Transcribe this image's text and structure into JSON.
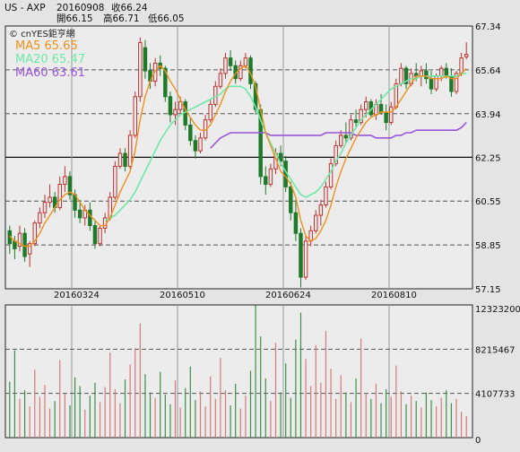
{
  "header": {
    "symbol": "US - AXP",
    "date": "20160908",
    "close_label": "收66.24",
    "open_label": "開66.15",
    "high_label": "高66.71",
    "low_label": "低66.05"
  },
  "watermark": "© cnYES鉅亨網",
  "legend": [
    {
      "label": "MA5 65.65",
      "color": "#f0901a"
    },
    {
      "label": "MA20 65.47",
      "color": "#6ee8a8"
    },
    {
      "label": "MA60 63.61",
      "color": "#9a55d8"
    }
  ],
  "colors": {
    "up": "#c0312e",
    "down": "#1f7a2a",
    "grid": "#444444",
    "panel_bg": "#ececec"
  },
  "chart_data": [
    {
      "type": "candlestick",
      "x_tick_labels": [
        "20160324",
        "20160510",
        "20160624",
        "20160810"
      ],
      "y_tick_labels": [
        "67.34",
        "65.64",
        "63.94",
        "62.25",
        "60.55",
        "58.85",
        "57.15"
      ],
      "ylim": [
        57.15,
        67.34
      ],
      "y_ticks": [
        67.34,
        65.64,
        63.94,
        62.25,
        60.55,
        58.85,
        57.15
      ],
      "last": {
        "date": "20160908",
        "open": 66.15,
        "high": 66.71,
        "low": 66.05,
        "close": 66.24
      },
      "ohlc": [
        [
          59.4,
          59.6,
          58.5,
          58.9
        ],
        [
          59.0,
          59.2,
          58.3,
          58.7
        ],
        [
          58.8,
          59.6,
          58.6,
          59.3
        ],
        [
          59.3,
          59.5,
          58.2,
          58.4
        ],
        [
          58.5,
          59.0,
          58.0,
          58.9
        ],
        [
          58.9,
          59.8,
          58.8,
          59.7
        ],
        [
          59.7,
          60.3,
          59.5,
          60.1
        ],
        [
          60.1,
          60.8,
          59.9,
          60.5
        ],
        [
          60.5,
          61.2,
          60.3,
          60.7
        ],
        [
          60.7,
          60.9,
          60.1,
          60.3
        ],
        [
          60.3,
          61.5,
          60.2,
          61.2
        ],
        [
          61.2,
          61.9,
          60.9,
          61.5
        ],
        [
          61.5,
          61.7,
          60.6,
          60.8
        ],
        [
          60.8,
          61.0,
          59.9,
          60.2
        ],
        [
          60.2,
          60.6,
          59.7,
          59.9
        ],
        [
          59.9,
          60.4,
          59.6,
          60.2
        ],
        [
          60.2,
          60.5,
          59.4,
          59.6
        ],
        [
          59.6,
          59.8,
          58.7,
          58.9
        ],
        [
          58.9,
          59.6,
          58.8,
          59.5
        ],
        [
          59.5,
          60.1,
          59.3,
          59.9
        ],
        [
          59.9,
          60.9,
          59.8,
          60.7
        ],
        [
          60.7,
          62.1,
          60.6,
          61.9
        ],
        [
          61.9,
          62.6,
          61.8,
          62.4
        ],
        [
          62.4,
          62.6,
          61.7,
          61.9
        ],
        [
          61.9,
          63.3,
          61.8,
          63.1
        ],
        [
          63.1,
          64.8,
          63.0,
          64.6
        ],
        [
          64.6,
          66.9,
          64.4,
          66.7
        ],
        [
          66.5,
          66.8,
          65.3,
          65.6
        ],
        [
          65.6,
          65.9,
          64.9,
          65.2
        ],
        [
          65.2,
          66.1,
          65.0,
          65.9
        ],
        [
          65.9,
          66.2,
          65.4,
          65.7
        ],
        [
          65.7,
          65.8,
          64.4,
          64.6
        ],
        [
          64.6,
          64.8,
          63.6,
          63.9
        ],
        [
          63.9,
          64.4,
          63.5,
          64.1
        ],
        [
          64.1,
          64.6,
          63.9,
          64.4
        ],
        [
          64.4,
          64.5,
          63.3,
          63.5
        ],
        [
          63.5,
          63.8,
          62.7,
          62.9
        ],
        [
          62.9,
          63.1,
          62.2,
          62.5
        ],
        [
          62.5,
          63.2,
          62.4,
          63.0
        ],
        [
          63.0,
          63.9,
          62.9,
          63.7
        ],
        [
          63.7,
          64.5,
          63.6,
          64.3
        ],
        [
          64.3,
          65.2,
          64.2,
          65.0
        ],
        [
          65.0,
          65.7,
          64.9,
          65.5
        ],
        [
          65.5,
          66.3,
          65.3,
          66.1
        ],
        [
          66.1,
          66.4,
          65.6,
          65.8
        ],
        [
          65.8,
          66.0,
          65.1,
          65.3
        ],
        [
          65.3,
          66.0,
          65.2,
          65.8
        ],
        [
          65.8,
          66.3,
          65.7,
          66.1
        ],
        [
          66.1,
          66.2,
          64.9,
          65.1
        ],
        [
          65.1,
          65.2,
          63.9,
          64.1
        ],
        [
          64.1,
          64.3,
          61.2,
          61.5
        ],
        [
          61.5,
          61.9,
          60.8,
          61.2
        ],
        [
          61.2,
          62.0,
          61.1,
          61.8
        ],
        [
          61.8,
          62.6,
          61.6,
          62.4
        ],
        [
          62.4,
          62.7,
          61.9,
          62.1
        ],
        [
          62.1,
          62.3,
          60.9,
          61.1
        ],
        [
          61.1,
          61.3,
          59.8,
          60.1
        ],
        [
          60.1,
          60.6,
          59.0,
          59.3
        ],
        [
          59.3,
          59.5,
          57.2,
          57.6
        ],
        [
          57.6,
          59.2,
          57.5,
          59.0
        ],
        [
          59.0,
          59.6,
          58.8,
          59.4
        ],
        [
          59.4,
          60.2,
          59.3,
          60.0
        ],
        [
          60.0,
          60.6,
          59.6,
          60.4
        ],
        [
          60.4,
          61.3,
          60.3,
          61.1
        ],
        [
          61.1,
          62.2,
          61.0,
          62.0
        ],
        [
          62.0,
          62.9,
          61.9,
          62.7
        ],
        [
          62.7,
          63.3,
          62.6,
          63.1
        ],
        [
          63.1,
          63.6,
          62.8,
          63.0
        ],
        [
          63.0,
          63.9,
          62.9,
          63.7
        ],
        [
          63.7,
          64.1,
          63.4,
          63.6
        ],
        [
          63.6,
          64.3,
          63.5,
          64.1
        ],
        [
          64.1,
          64.6,
          63.8,
          64.4
        ],
        [
          64.4,
          64.5,
          63.8,
          63.9
        ],
        [
          63.9,
          64.5,
          63.7,
          64.3
        ],
        [
          64.3,
          64.7,
          63.9,
          64.0
        ],
        [
          64.0,
          64.3,
          63.3,
          63.6
        ],
        [
          63.6,
          64.4,
          63.5,
          64.2
        ],
        [
          64.2,
          65.3,
          64.1,
          65.1
        ],
        [
          65.1,
          65.9,
          65.0,
          65.7
        ],
        [
          65.7,
          65.8,
          64.9,
          65.1
        ],
        [
          65.1,
          65.7,
          65.0,
          65.5
        ],
        [
          65.5,
          65.9,
          65.2,
          65.4
        ],
        [
          65.4,
          65.8,
          65.0,
          65.6
        ],
        [
          65.6,
          65.9,
          65.1,
          65.3
        ],
        [
          65.3,
          65.6,
          64.7,
          64.9
        ],
        [
          64.9,
          65.5,
          64.8,
          65.4
        ],
        [
          65.4,
          65.8,
          65.2,
          65.7
        ],
        [
          65.7,
          65.9,
          65.3,
          65.4
        ],
        [
          65.4,
          65.7,
          64.6,
          64.8
        ],
        [
          64.8,
          65.6,
          64.7,
          65.5
        ],
        [
          65.5,
          66.3,
          65.4,
          66.1
        ],
        [
          66.15,
          66.71,
          66.05,
          66.24
        ]
      ],
      "ma5": [
        59.2,
        59.0,
        58.9,
        58.8,
        58.8,
        59.0,
        59.3,
        59.7,
        60.0,
        60.3,
        60.6,
        60.8,
        60.9,
        60.8,
        60.5,
        60.2,
        60.0,
        59.8,
        59.6,
        59.6,
        59.9,
        60.4,
        60.9,
        61.3,
        61.7,
        62.5,
        63.7,
        64.6,
        65.2,
        65.6,
        65.8,
        65.6,
        65.2,
        64.9,
        64.5,
        64.1,
        63.8,
        63.5,
        63.3,
        63.3,
        63.5,
        63.9,
        64.3,
        64.8,
        65.2,
        65.5,
        65.7,
        65.8,
        65.5,
        65.0,
        64.1,
        63.2,
        62.7,
        62.2,
        61.7,
        61.5,
        61.2,
        60.7,
        59.8,
        59.2,
        59.0,
        59.1,
        59.4,
        59.8,
        60.4,
        61.1,
        61.7,
        62.2,
        62.6,
        63.0,
        63.3,
        63.6,
        63.8,
        63.9,
        64.0,
        64.0,
        64.0,
        64.2,
        64.5,
        64.8,
        65.1,
        65.4,
        65.4,
        65.4,
        65.3,
        65.3,
        65.3,
        65.4,
        65.3,
        65.3,
        65.5,
        65.7
      ],
      "ma20": [
        null,
        null,
        null,
        null,
        null,
        null,
        null,
        null,
        null,
        null,
        null,
        null,
        null,
        null,
        null,
        null,
        null,
        null,
        null,
        59.8,
        59.9,
        60.0,
        60.2,
        60.4,
        60.6,
        60.9,
        61.3,
        61.7,
        62.1,
        62.5,
        62.9,
        63.2,
        63.5,
        63.7,
        63.9,
        64.0,
        64.1,
        64.2,
        64.3,
        64.4,
        64.5,
        64.6,
        64.7,
        64.9,
        65.0,
        65.0,
        65.0,
        64.9,
        64.6,
        64.2,
        63.7,
        63.2,
        62.8,
        62.4,
        62.0,
        61.7,
        61.4,
        61.1,
        60.8,
        60.7,
        60.8,
        60.9,
        61.1,
        61.4,
        61.7,
        62.1,
        62.4,
        62.8,
        63.1,
        63.4,
        63.7,
        63.9,
        64.1,
        64.3,
        64.5,
        64.7,
        64.9,
        65.0,
        65.1,
        65.2,
        65.3,
        65.3,
        65.4,
        65.4,
        65.4,
        65.4,
        65.4,
        65.4,
        65.4,
        65.4,
        65.5,
        65.5
      ],
      "ma60": [
        null,
        null,
        null,
        null,
        null,
        null,
        null,
        null,
        null,
        null,
        null,
        null,
        null,
        null,
        null,
        null,
        null,
        null,
        null,
        null,
        null,
        null,
        null,
        null,
        null,
        null,
        null,
        null,
        null,
        null,
        null,
        null,
        null,
        null,
        null,
        null,
        null,
        null,
        null,
        null,
        62.6,
        62.8,
        63.0,
        63.1,
        63.2,
        63.2,
        63.2,
        63.2,
        63.2,
        63.2,
        63.2,
        63.2,
        63.1,
        63.1,
        63.1,
        63.1,
        63.1,
        63.1,
        63.1,
        63.1,
        63.1,
        63.1,
        63.1,
        63.2,
        63.2,
        63.2,
        63.2,
        63.2,
        63.2,
        63.1,
        63.1,
        63.1,
        63.1,
        63.0,
        63.0,
        63.0,
        63.0,
        63.1,
        63.1,
        63.2,
        63.2,
        63.3,
        63.3,
        63.3,
        63.3,
        63.3,
        63.3,
        63.3,
        63.3,
        63.3,
        63.4,
        63.6
      ]
    },
    {
      "type": "bar",
      "y_tick_labels": [
        "12323200",
        "8215467",
        "4107733",
        "0"
      ],
      "ylim": [
        0,
        12323200
      ],
      "y_ticks": [
        12323200,
        8215467,
        4107733,
        0
      ],
      "values": [
        5.2,
        8.1,
        3.6,
        4.4,
        2.9,
        6.3,
        3.8,
        4.9,
        2.7,
        3.4,
        7.2,
        4.1,
        3.0,
        5.6,
        4.8,
        2.6,
        3.9,
        5.1,
        3.3,
        4.7,
        7.9,
        4.5,
        3.2,
        5.4,
        6.8,
        8.3,
        10.6,
        5.9,
        4.2,
        3.7,
        6.1,
        4.0,
        3.1,
        5.3,
        2.8,
        4.6,
        6.6,
        3.5,
        4.3,
        2.9,
        5.7,
        3.6,
        7.4,
        4.4,
        3.0,
        5.0,
        2.7,
        3.9,
        6.2,
        12.3,
        9.4,
        5.5,
        3.4,
        8.8,
        4.2,
        6.9,
        3.7,
        9.1,
        11.6,
        7.3,
        4.8,
        8.6,
        5.1,
        9.9,
        6.4,
        3.6,
        5.8,
        4.2,
        3.3,
        5.5,
        9.2,
        4.1,
        3.6,
        5.0,
        3.2,
        4.5,
        3.8,
        6.7,
        4.3,
        3.1,
        3.9,
        3.4,
        2.8,
        4.2,
        3.5,
        2.9,
        3.7,
        4.4,
        3.2,
        3.6,
        2.4,
        2.0
      ]
    }
  ]
}
